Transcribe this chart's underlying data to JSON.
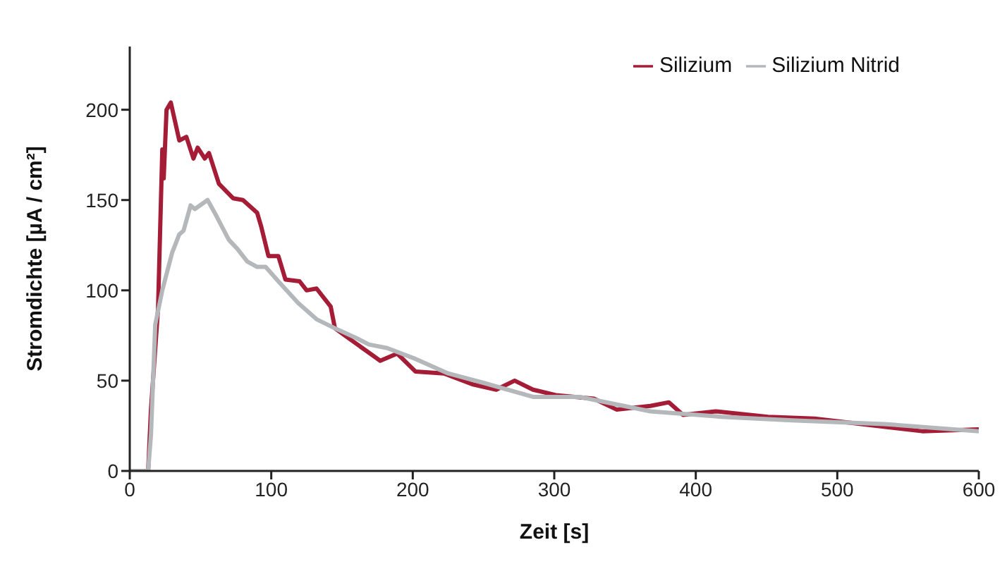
{
  "chart_data": {
    "type": "line",
    "xlabel": "Zeit [s]",
    "ylabel": "Stromdichte [µA / cm²]",
    "xlim": [
      0,
      600
    ],
    "xticks": [
      0,
      100,
      200,
      300,
      400,
      500,
      600
    ],
    "ylim": [
      0,
      235
    ],
    "yticks": [
      0,
      50,
      100,
      150,
      200
    ],
    "grid": false,
    "legend": "top right",
    "marker": "none",
    "line_style": "solid",
    "series": [
      {
        "name": "Silizium",
        "color": "#a51c36",
        "x": [
          0,
          13,
          15,
          20,
          23,
          24,
          26,
          29,
          35,
          40,
          45,
          48,
          53,
          56,
          63,
          73,
          80,
          90,
          93,
          98,
          105,
          110,
          120,
          125,
          132,
          142,
          145,
          152,
          177,
          189,
          202,
          222,
          242,
          259,
          272,
          285,
          301,
          328,
          344,
          368,
          381,
          391,
          414,
          451,
          484,
          517,
          560,
          600
        ],
        "values": [
          0,
          0,
          34,
          90,
          178,
          162,
          200,
          204,
          183,
          185,
          173,
          179,
          173,
          176,
          159,
          151,
          150,
          143,
          135,
          119,
          119,
          106,
          105,
          100,
          101,
          91,
          79,
          75,
          61,
          65,
          55,
          54,
          48,
          45,
          50,
          45,
          42,
          40,
          34,
          36,
          38,
          31,
          33,
          30,
          29,
          26,
          22,
          23
        ]
      },
      {
        "name": "Silizium Nitrid",
        "color": "#b4b8bb",
        "x": [
          0,
          13,
          15,
          18,
          23,
          30,
          35,
          38,
          43,
          46,
          55,
          60,
          70,
          76,
          83,
          90,
          96,
          105,
          119,
          132,
          145,
          159,
          169,
          182,
          202,
          225,
          249,
          285,
          318,
          368,
          418,
          468,
          533,
          600
        ],
        "values": [
          0,
          0,
          20,
          81,
          100,
          121,
          131,
          133,
          147,
          145,
          150,
          143,
          128,
          123,
          116,
          113,
          113,
          105,
          93,
          84,
          79,
          74,
          70,
          68,
          62,
          54,
          49,
          41,
          41,
          33,
          30,
          28,
          26,
          22
        ]
      }
    ]
  }
}
